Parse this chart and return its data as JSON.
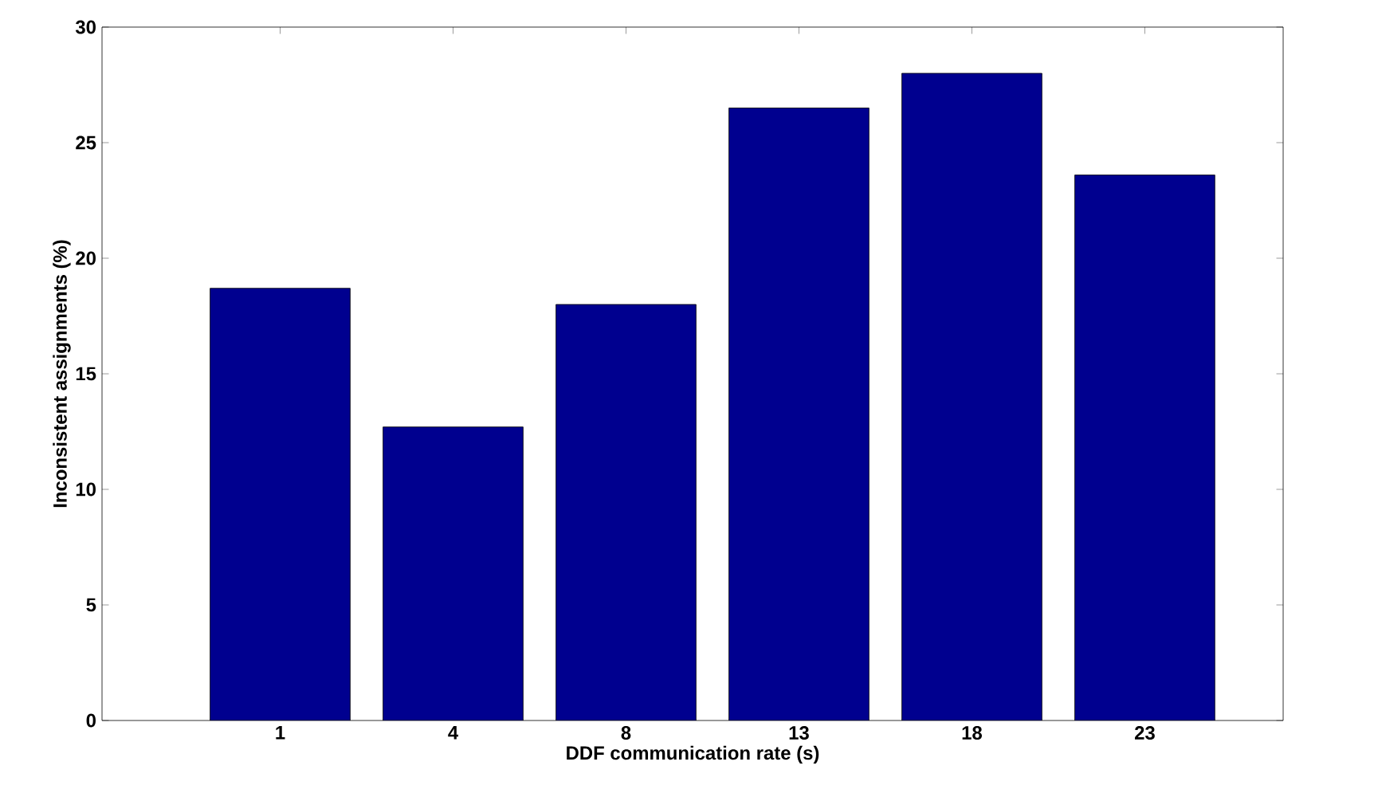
{
  "chart_data": {
    "type": "bar",
    "xlabel": "DDF communication rate (s)",
    "ylabel": "Inconsistent assignments (%)",
    "categories": [
      "1",
      "4",
      "8",
      "13",
      "18",
      "23"
    ],
    "values": [
      18.7,
      12.7,
      18.0,
      26.5,
      28.0,
      23.6
    ],
    "color": "#00008f",
    "ylim": [
      0,
      30
    ],
    "yticks": [
      0,
      5,
      10,
      15,
      20,
      25,
      30
    ],
    "grid": false
  }
}
